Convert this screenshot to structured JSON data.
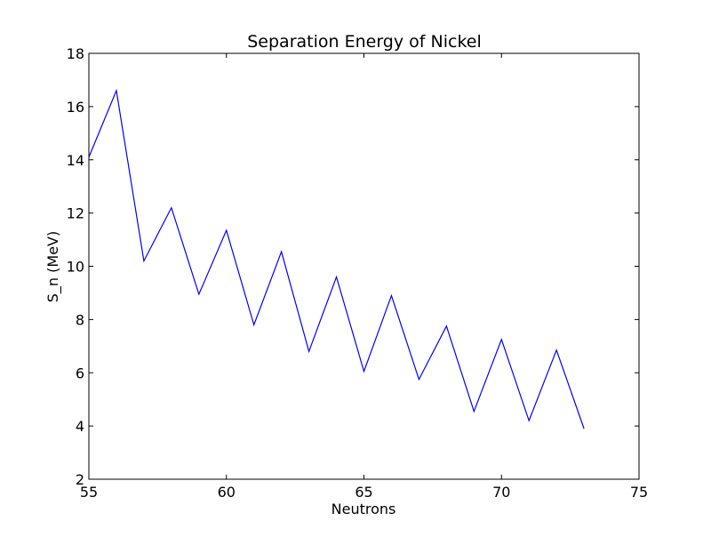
{
  "chart_data": {
    "type": "line",
    "title": "Separation Energy of Nickel",
    "xlabel": "Neutrons",
    "ylabel": "S_n (MeV)",
    "xlim": [
      55,
      75
    ],
    "ylim": [
      2,
      18
    ],
    "xticks": [
      55,
      60,
      65,
      70,
      75
    ],
    "yticks": [
      2,
      4,
      6,
      8,
      10,
      12,
      14,
      16,
      18
    ],
    "grid": false,
    "series": [
      {
        "color": "#0000ff",
        "x": [
          55,
          56,
          57,
          58,
          59,
          60,
          61,
          62,
          63,
          64,
          65,
          66,
          67,
          68,
          69,
          70,
          71,
          72,
          73
        ],
        "y": [
          14.1,
          16.6,
          10.2,
          12.2,
          8.95,
          11.35,
          7.8,
          10.55,
          6.8,
          9.6,
          6.05,
          8.9,
          5.75,
          7.75,
          4.55,
          7.25,
          4.2,
          6.85,
          3.9
        ]
      }
    ]
  }
}
